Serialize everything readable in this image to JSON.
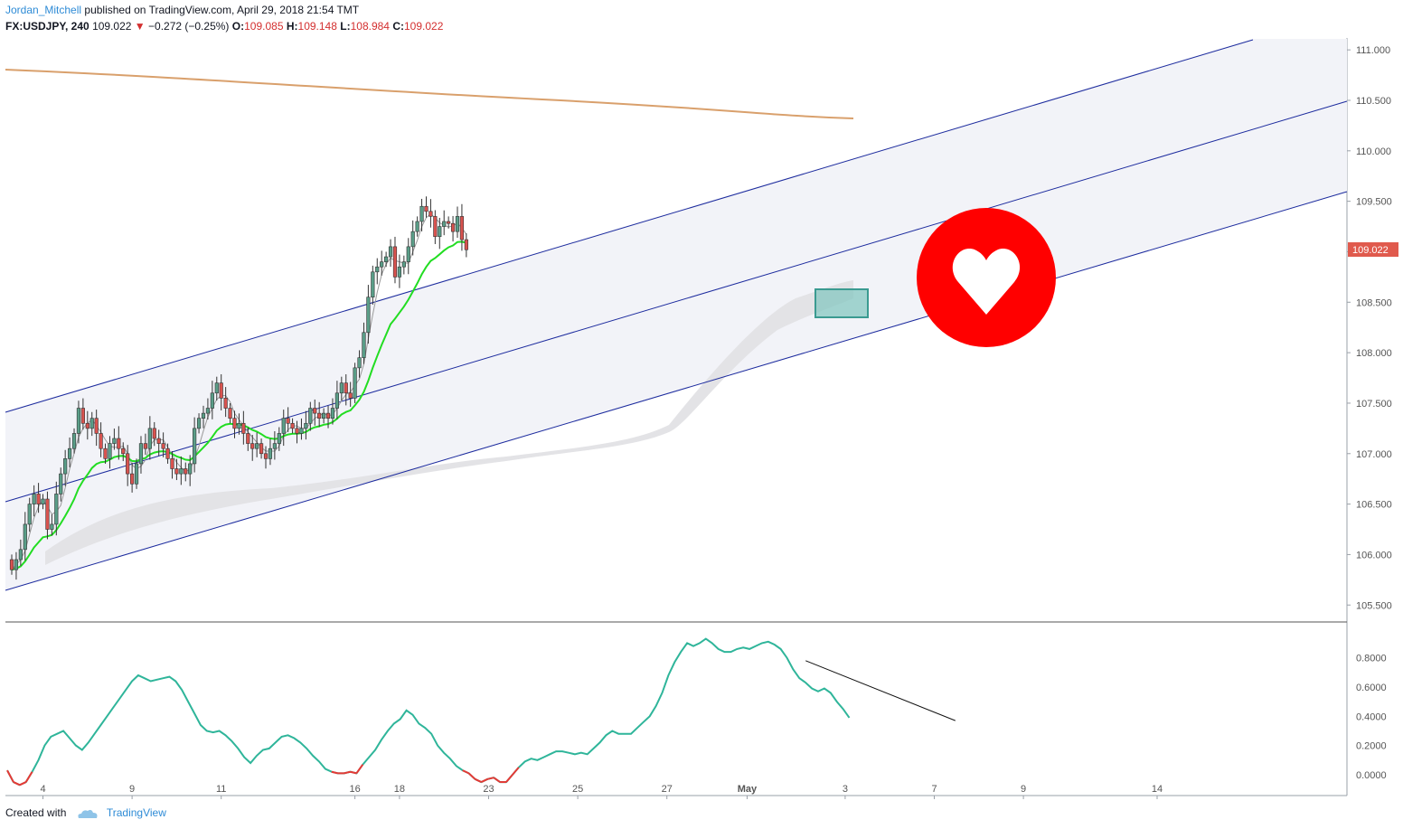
{
  "header": {
    "author": "Jordan_Mitchell",
    "published": "published on TradingView.com, April 29, 2018 21:54 TMT"
  },
  "symbol": {
    "name": "FX:USDJPY, 240",
    "last": "109.022",
    "change": "−0.272 (−0.25%)",
    "open_label": "O:",
    "open": "109.085",
    "high_label": "H:",
    "high": "109.148",
    "low_label": "L:",
    "low": "108.984",
    "close_label": "C:",
    "close": "109.022"
  },
  "footer": {
    "created_with": "Created with",
    "brand": "TradingView"
  },
  "colors": {
    "up": "#5a9e88",
    "down": "#d9534f",
    "channel": "#1c2b9e",
    "ema_fast": "#22dd22",
    "sma": "#f5a97f",
    "long_ma": "#d9a06c",
    "oscillator": "#2fb59a",
    "oscillator_low": "#e53935",
    "heart": "#ff0000",
    "zone": "#7fc4bd",
    "price_tag": "#e05a4d"
  },
  "chart_data": [
    {
      "type": "candlestick",
      "symbol": "FX:USDJPY",
      "timeframe": "240",
      "ylim": [
        105.35,
        111.1
      ],
      "y_ticks": [
        "111.000",
        "110.500",
        "110.000",
        "109.500",
        "109.000",
        "108.500",
        "108.000",
        "107.500",
        "107.000",
        "106.500",
        "106.000",
        "105.500"
      ],
      "x_ticks": [
        {
          "label": "4",
          "bar": 7
        },
        {
          "label": "9",
          "bar": 27
        },
        {
          "label": "11",
          "bar": 47
        },
        {
          "label": "16",
          "bar": 77
        },
        {
          "label": "18",
          "bar": 87
        },
        {
          "label": "23",
          "bar": 107
        },
        {
          "label": "25",
          "bar": 127
        },
        {
          "label": "27",
          "bar": 147
        },
        {
          "label": "May",
          "bar": 165
        },
        {
          "label": "3",
          "bar": 187
        },
        {
          "label": "7",
          "bar": 207
        },
        {
          "label": "9",
          "bar": 227
        },
        {
          "label": "14",
          "bar": 257
        }
      ],
      "last_price_label": "109.022",
      "closes": [
        105.85,
        105.95,
        106.05,
        106.3,
        106.5,
        106.6,
        106.5,
        106.55,
        106.25,
        106.3,
        106.6,
        106.8,
        106.95,
        107.05,
        107.2,
        107.45,
        107.3,
        107.25,
        107.35,
        107.2,
        107.05,
        106.95,
        107.1,
        107.15,
        107.05,
        107.0,
        106.8,
        106.7,
        106.9,
        107.1,
        107.05,
        107.25,
        107.15,
        107.1,
        107.05,
        106.95,
        106.85,
        106.8,
        106.85,
        106.8,
        106.9,
        107.25,
        107.35,
        107.4,
        107.45,
        107.6,
        107.7,
        107.55,
        107.45,
        107.35,
        107.25,
        107.3,
        107.2,
        107.1,
        107.05,
        107.1,
        107.0,
        106.95,
        107.05,
        107.1,
        107.2,
        107.35,
        107.3,
        107.25,
        107.2,
        107.25,
        107.3,
        107.45,
        107.4,
        107.35,
        107.4,
        107.35,
        107.45,
        107.6,
        107.7,
        107.6,
        107.55,
        107.85,
        107.95,
        108.2,
        108.55,
        108.8,
        108.85,
        108.9,
        108.95,
        109.05,
        108.75,
        108.85,
        108.9,
        109.05,
        109.2,
        109.3,
        109.45,
        109.4,
        109.35,
        109.15,
        109.25,
        109.3,
        109.28,
        109.2,
        109.35,
        109.12,
        109.02
      ],
      "annotations": [
        "ascending channel (upper, middle, lower lines)",
        "heart marker",
        "demand zone rectangle",
        "long moving average"
      ]
    },
    {
      "type": "line",
      "name": "oscillator",
      "ylim": [
        -0.13,
        1.02
      ],
      "y_ticks": [
        "0.8000",
        "0.6000",
        "0.4000",
        "0.2000",
        "0.0000"
      ],
      "values": [
        0.03,
        -0.05,
        -0.07,
        -0.05,
        0.02,
        0.1,
        0.2,
        0.26,
        0.28,
        0.3,
        0.25,
        0.2,
        0.17,
        0.22,
        0.28,
        0.34,
        0.4,
        0.46,
        0.52,
        0.58,
        0.64,
        0.68,
        0.66,
        0.64,
        0.65,
        0.66,
        0.67,
        0.64,
        0.58,
        0.5,
        0.42,
        0.34,
        0.3,
        0.29,
        0.3,
        0.27,
        0.23,
        0.18,
        0.12,
        0.08,
        0.13,
        0.17,
        0.18,
        0.22,
        0.26,
        0.27,
        0.25,
        0.22,
        0.18,
        0.13,
        0.09,
        0.04,
        0.02,
        0.01,
        0.01,
        0.02,
        0.01,
        0.07,
        0.12,
        0.17,
        0.24,
        0.3,
        0.35,
        0.38,
        0.44,
        0.41,
        0.35,
        0.32,
        0.28,
        0.2,
        0.15,
        0.11,
        0.06,
        0.03,
        0.01,
        -0.03,
        -0.05,
        -0.03,
        -0.02,
        -0.05,
        -0.05,
        0.0,
        0.05,
        0.09,
        0.11,
        0.1,
        0.12,
        0.14,
        0.16,
        0.16,
        0.15,
        0.14,
        0.15,
        0.14,
        0.18,
        0.22,
        0.27,
        0.3,
        0.28,
        0.28,
        0.28,
        0.32,
        0.36,
        0.4,
        0.47,
        0.56,
        0.68,
        0.77,
        0.84,
        0.9,
        0.88,
        0.9,
        0.93,
        0.9,
        0.86,
        0.84,
        0.84,
        0.86,
        0.87,
        0.86,
        0.88,
        0.9,
        0.91,
        0.89,
        0.86,
        0.8,
        0.72,
        0.66,
        0.63,
        0.59,
        0.57,
        0.59,
        0.56,
        0.5,
        0.45,
        0.39
      ],
      "divergence_line": {
        "from": [
          128,
          0.78
        ],
        "to": [
          152,
          0.37
        ]
      }
    }
  ]
}
